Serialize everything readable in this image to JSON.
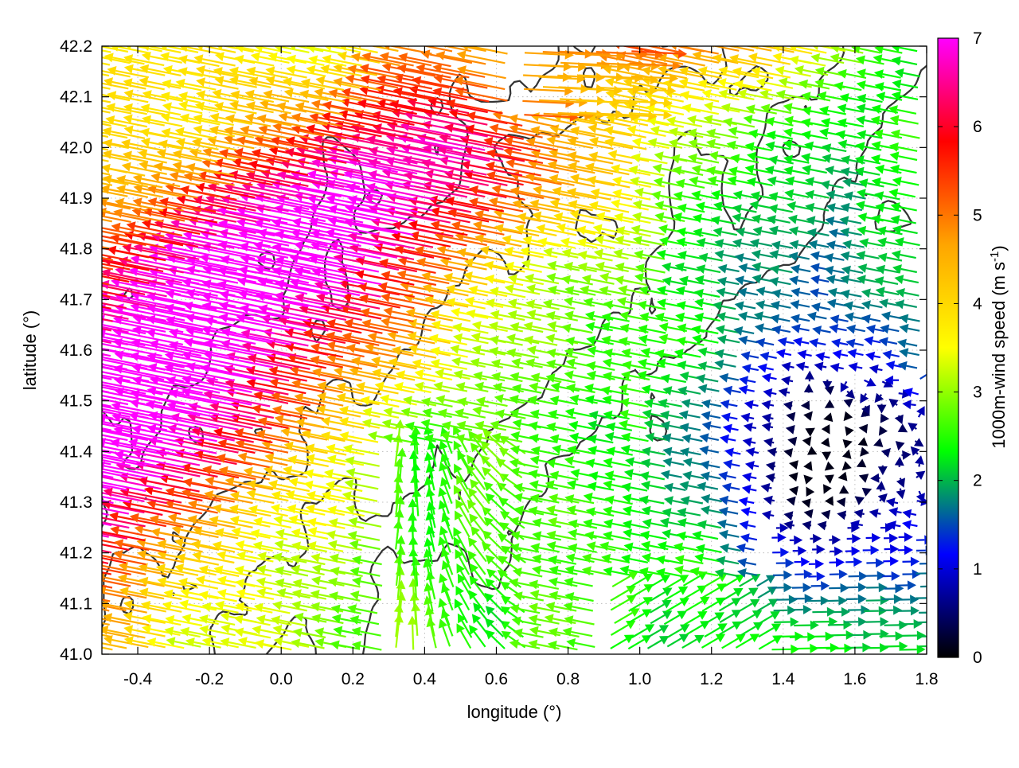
{
  "chart_data": {
    "type": "vector-field",
    "xlabel": "longitude (°)",
    "ylabel": "latitude (°)",
    "xlim": [
      -0.5,
      1.8
    ],
    "ylim": [
      41.0,
      42.2
    ],
    "x_ticks": [
      -0.4,
      -0.2,
      0.0,
      0.2,
      0.4,
      0.6,
      0.8,
      1.0,
      1.2,
      1.4,
      1.6,
      1.8
    ],
    "x_tick_labels": [
      "-0.4",
      "-0.2",
      "0.0",
      "0.2",
      "0.4",
      "0.6",
      "0.8",
      "1.0",
      "1.2",
      "1.4",
      "1.6",
      "1.8"
    ],
    "y_ticks": [
      41.0,
      41.1,
      41.2,
      41.3,
      41.4,
      41.5,
      41.6,
      41.7,
      41.8,
      41.9,
      42.0,
      42.1,
      42.2
    ],
    "y_tick_labels": [
      "41.0",
      "41.1",
      "41.2",
      "41.3",
      "41.4",
      "41.5",
      "41.6",
      "41.7",
      "41.8",
      "41.9",
      "42.0",
      "42.1",
      "42.2"
    ],
    "grid": "dotted",
    "legend": "none",
    "colorbar": {
      "label": "1000m-wind speed (m s",
      "label_superscript": "-1",
      "label_close": ")",
      "range": [
        0,
        7
      ],
      "ticks": [
        0,
        1,
        2,
        3,
        4,
        5,
        6,
        7
      ],
      "tick_labels": [
        "0",
        "1",
        "2",
        "3",
        "4",
        "5",
        "6",
        "7"
      ],
      "palette": [
        "#000000",
        "#0000ff",
        "#00ff00",
        "#ffff00",
        "#ffa500",
        "#ff0000",
        "#ff00ff"
      ]
    },
    "contour_color": "#333333"
  }
}
